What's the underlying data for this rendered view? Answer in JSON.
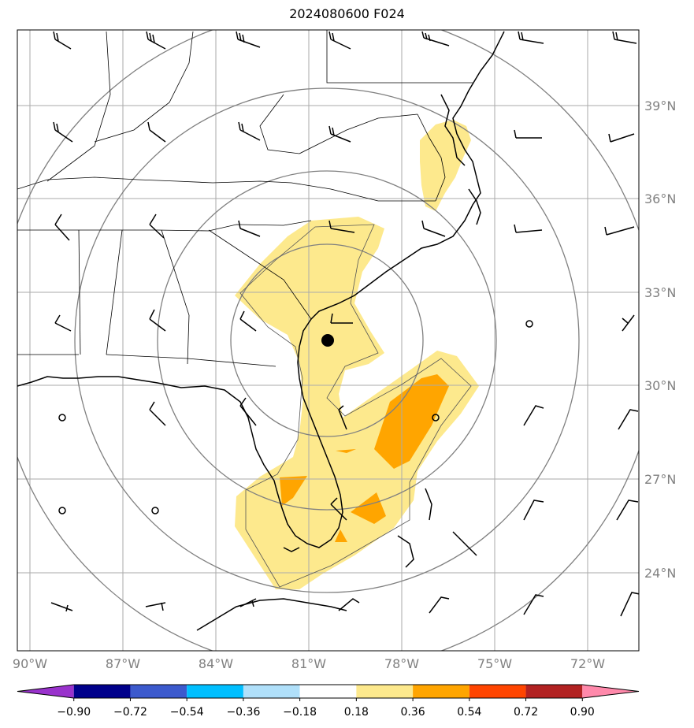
{
  "title": "2024080600 F024",
  "lon_ticks": [
    "90°W",
    "87°W",
    "84°W",
    "81°W",
    "78°W",
    "75°W",
    "72°W"
  ],
  "lat_ticks": [
    "39°N",
    "36°N",
    "33°N",
    "30°N",
    "27°N",
    "24°N"
  ],
  "colorbar": {
    "colors": [
      "#9932cc",
      "#00008b",
      "#3c5acd",
      "#00bfff",
      "#b0e0fa",
      "#ffffff",
      "#fde98d",
      "#ffa500",
      "#ff4500",
      "#b22222",
      "#ff89ab"
    ],
    "ticks": [
      "−0.90",
      "−0.72",
      "−0.54",
      "−0.36",
      "−0.18",
      "0.18",
      "0.36",
      "0.54",
      "0.72",
      "0.90"
    ]
  },
  "colors": {
    "gridline": "#aaaaaa",
    "range_ring": "#808080",
    "coast": "#000000",
    "fill_low": "#fde98d",
    "fill_mid": "#ffa500"
  },
  "storm_center_marker": "filled-black-circle"
}
